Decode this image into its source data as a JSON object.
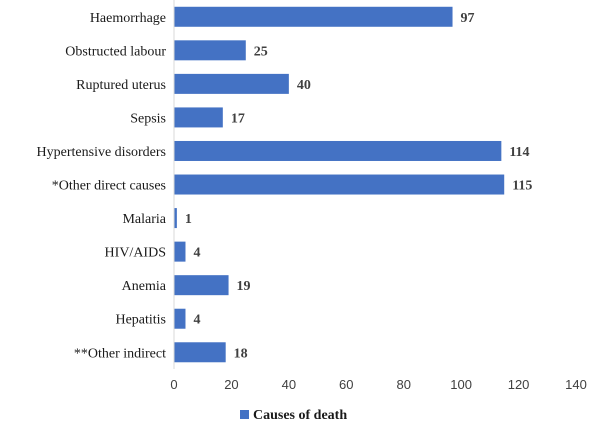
{
  "chart_data": {
    "type": "bar",
    "orientation": "horizontal",
    "categories": [
      "Haemorrhage",
      "Obstructed labour",
      "Ruptured uterus",
      "Sepsis",
      "Hypertensive disorders",
      "*Other direct causes",
      "Malaria",
      "HIV/AIDS",
      "Anemia",
      "Hepatitis",
      "**Other indirect"
    ],
    "series": [
      {
        "name": "Causes of death",
        "color": "#4472c4",
        "values": [
          97,
          25,
          40,
          17,
          114,
          115,
          1,
          4,
          19,
          4,
          18
        ]
      }
    ],
    "xlim": [
      0,
      140
    ],
    "xticks": [
      0,
      20,
      40,
      60,
      80,
      100,
      120,
      140
    ],
    "grid": false,
    "legend": "bottom",
    "data_labels": true
  }
}
